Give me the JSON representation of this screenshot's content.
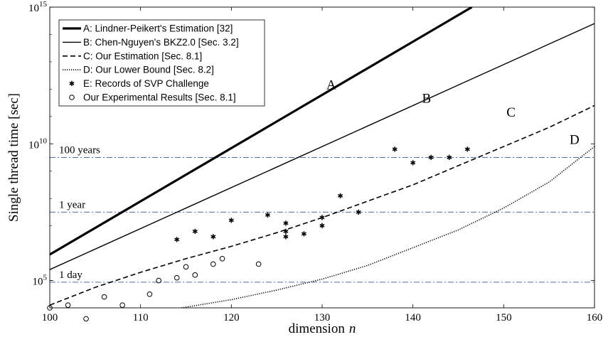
{
  "chart_data": {
    "type": "line",
    "xlabel": "dimension",
    "xlabel_var": "n",
    "ylabel": "Single thread time [sec]",
    "xlim": [
      100,
      160
    ],
    "ylim_log10": [
      4,
      15
    ],
    "y_scale": "log",
    "x_ticks": [
      100,
      110,
      120,
      130,
      140,
      150,
      160
    ],
    "x_tick_labels": [
      "100",
      "110",
      "120",
      "130",
      "140",
      "150",
      "160"
    ],
    "y_ticks": [
      5,
      10,
      15
    ],
    "y_tick_labels": [
      "10",
      "10",
      "10"
    ],
    "y_tick_exponents": [
      "5",
      "10",
      "15"
    ],
    "reference_lines": [
      {
        "label": "100 years",
        "value_log10": 9.5
      },
      {
        "label": "1 year",
        "value_log10": 7.5
      },
      {
        "label": "1 day",
        "value_log10": 4.94
      }
    ],
    "series": [
      {
        "name": "A: Lindner-Peikert's Estimation [32]",
        "label": "A",
        "style": "thick-solid",
        "x": [
          100,
          146.5
        ],
        "y_log10": [
          5.95,
          15
        ]
      },
      {
        "name": "B: Chen-Nguyen's BKZ2.0 [Sec. 3.2]",
        "label": "B",
        "style": "solid",
        "x": [
          100,
          160
        ],
        "y_log10": [
          5.4,
          14.4
        ]
      },
      {
        "name": "C: Our Estimation [Sec. 8.1]",
        "label": "C",
        "style": "dashed",
        "x": [
          100,
          105,
          110,
          115,
          120,
          125,
          130,
          135,
          140,
          145,
          150,
          155,
          160
        ],
        "y_log10": [
          4.1,
          4.75,
          5.3,
          5.8,
          6.25,
          6.75,
          7.3,
          7.9,
          8.5,
          9.2,
          9.9,
          10.6,
          11.4
        ]
      },
      {
        "name": "D: Our Lower Bound [Sec. 8.2]",
        "label": "D",
        "style": "dotted",
        "x": [
          114.5,
          120,
          125,
          130,
          135,
          140,
          145,
          150,
          155,
          160
        ],
        "y_log10": [
          4.0,
          4.3,
          4.65,
          5.05,
          5.55,
          6.2,
          6.85,
          7.65,
          8.6,
          9.9
        ]
      },
      {
        "name": "E: Records of SVP Challenge",
        "label": "E",
        "style": "star-markers",
        "x": [
          114,
          116,
          118,
          120,
          124,
          126,
          126,
          126,
          128,
          130,
          130,
          132,
          134,
          138,
          140,
          142,
          144,
          146
        ],
        "y_log10": [
          6.5,
          6.8,
          6.6,
          7.2,
          7.4,
          7.1,
          6.8,
          6.6,
          6.7,
          7.3,
          7.0,
          8.1,
          7.5,
          9.8,
          9.3,
          9.5,
          9.5,
          9.8
        ]
      },
      {
        "name": "Our Experimental Results [Sec. 8.1]",
        "label": "",
        "style": "circle-markers",
        "x": [
          100,
          102,
          104,
          106,
          108,
          111,
          112,
          114,
          115,
          116,
          118,
          119,
          123
        ],
        "y_log10": [
          4.0,
          4.1,
          3.6,
          4.4,
          4.1,
          4.5,
          5.0,
          5.1,
          5.5,
          5.2,
          5.6,
          5.8,
          5.6
        ]
      }
    ],
    "curve_labels": [
      {
        "text": "A",
        "x": 131,
        "y_log10": 12.0
      },
      {
        "text": "B",
        "x": 141.5,
        "y_log10": 11.5
      },
      {
        "text": "C",
        "x": 150.8,
        "y_log10": 11.0
      },
      {
        "text": "D",
        "x": 157.8,
        "y_log10": 10.0
      }
    ],
    "legend": {
      "placement": "top-left"
    },
    "grid": false
  }
}
